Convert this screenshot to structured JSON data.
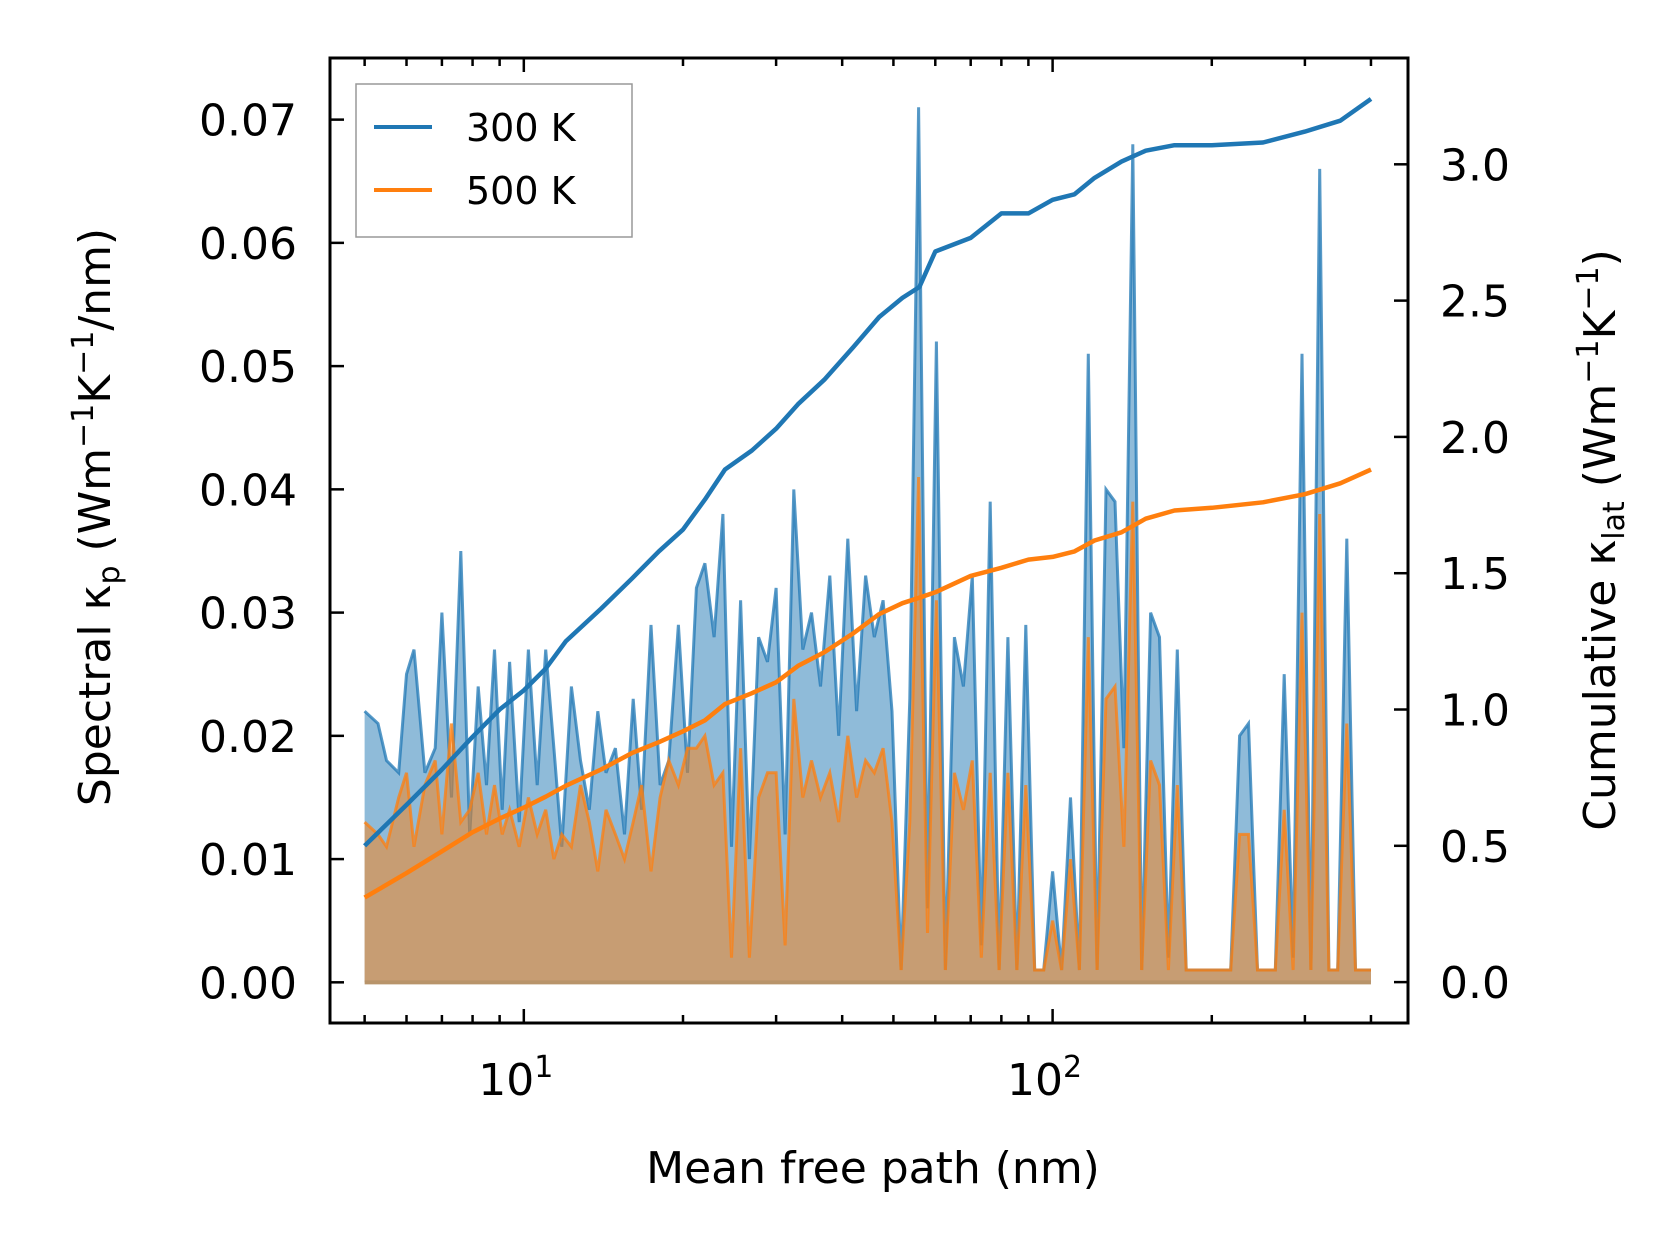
{
  "chart_data": {
    "type": "line",
    "xscale": "log",
    "xlabel": "Mean free path (nm)",
    "ylabel_left": {
      "text": "Spectral κ",
      "sub": "p",
      "unit_open": " (Wm",
      "sup1": "−1",
      "mid": "K",
      "sup2": "−1",
      "tail": "/nm)"
    },
    "ylabel_right": {
      "text": "Cumulative κ",
      "sub": "lat",
      "unit_open": " (Wm",
      "sup1": "−1",
      "mid": "K",
      "sup2": "−1",
      "tail": ")"
    },
    "xlim": [
      4.3,
      470
    ],
    "ylim_left": [
      -0.0033,
      0.075
    ],
    "ylim_right": [
      -0.15,
      3.39
    ],
    "x_ticks": [
      {
        "value": 10,
        "base": "10",
        "exp": "1"
      },
      {
        "value": 100,
        "base": "10",
        "exp": "2"
      }
    ],
    "y_left_ticks": [
      "0.00",
      "0.01",
      "0.02",
      "0.03",
      "0.04",
      "0.05",
      "0.06",
      "0.07"
    ],
    "y_right_ticks": [
      "0.0",
      "0.5",
      "1.0",
      "1.5",
      "2.0",
      "2.5",
      "3.0"
    ],
    "legend": {
      "position": "upper-left",
      "entries": [
        "300 K",
        "500 K"
      ]
    },
    "colors": {
      "300K": "#1f77b4",
      "500K": "#ff7f0e",
      "fill300": "#6fa3cf",
      "fill500": "#c49a6c"
    },
    "spectral": {
      "x": [
        5.0,
        5.3,
        5.5,
        5.8,
        6.0,
        6.2,
        6.5,
        6.8,
        7.0,
        7.3,
        7.6,
        7.9,
        8.2,
        8.5,
        8.8,
        9.1,
        9.4,
        9.8,
        10.2,
        10.6,
        11.0,
        11.4,
        11.8,
        12.3,
        12.8,
        13.3,
        13.8,
        14.3,
        14.9,
        15.5,
        16.1,
        16.7,
        17.4,
        18.1,
        18.8,
        19.6,
        20.4,
        21.2,
        22.0,
        22.9,
        23.8,
        24.7,
        25.7,
        26.7,
        27.8,
        28.9,
        30.0,
        31.2,
        32.4,
        33.7,
        35.0,
        36.4,
        37.9,
        39.4,
        41.0,
        42.6,
        44.3,
        46.0,
        47.8,
        49.7,
        51.7,
        53.7,
        55.8,
        58.0,
        60.3,
        62.7,
        65.2,
        67.8,
        70.5,
        73.3,
        76.2,
        79.2,
        82.3,
        85.6,
        89.0,
        92.5,
        96.2,
        100.0,
        104.0,
        108.1,
        112.4,
        116.8,
        121.4,
        126.2,
        131.2,
        136.4,
        141.8,
        147.4,
        153.2,
        159.3,
        165.6,
        172.1,
        178.9,
        186.0,
        193.3,
        201.0,
        209.0,
        217.2,
        225.8,
        234.7,
        244.0,
        253.7,
        263.7,
        274.1,
        285.0,
        296.3,
        308.0,
        320.0,
        333.0,
        346.0,
        360.0,
        374.0,
        389.0,
        400.0
      ],
      "k300": [
        0.022,
        0.021,
        0.018,
        0.017,
        0.025,
        0.027,
        0.017,
        0.019,
        0.03,
        0.015,
        0.035,
        0.012,
        0.024,
        0.016,
        0.027,
        0.014,
        0.026,
        0.013,
        0.027,
        0.016,
        0.027,
        0.019,
        0.011,
        0.024,
        0.018,
        0.014,
        0.022,
        0.017,
        0.019,
        0.012,
        0.023,
        0.014,
        0.029,
        0.016,
        0.018,
        0.029,
        0.017,
        0.032,
        0.034,
        0.028,
        0.038,
        0.011,
        0.031,
        0.01,
        0.028,
        0.026,
        0.032,
        0.012,
        0.04,
        0.027,
        0.03,
        0.024,
        0.033,
        0.02,
        0.036,
        0.022,
        0.033,
        0.028,
        0.031,
        0.022,
        0.001,
        0.023,
        0.071,
        0.006,
        0.052,
        0.001,
        0.028,
        0.024,
        0.033,
        0.003,
        0.039,
        0.001,
        0.028,
        0.001,
        0.029,
        0.001,
        0.001,
        0.009,
        0.001,
        0.015,
        0.001,
        0.051,
        0.001,
        0.04,
        0.039,
        0.019,
        0.068,
        0.001,
        0.03,
        0.028,
        0.002,
        0.027,
        0.001,
        0.001,
        0.001,
        0.001,
        0.001,
        0.001,
        0.02,
        0.021,
        0.001,
        0.001,
        0.001,
        0.025,
        0.002,
        0.051,
        0.001,
        0.066,
        0.001,
        0.001,
        0.036,
        0.001,
        0.001,
        0.001
      ],
      "k500": [
        0.013,
        0.012,
        0.011,
        0.015,
        0.017,
        0.011,
        0.016,
        0.018,
        0.012,
        0.021,
        0.013,
        0.014,
        0.017,
        0.012,
        0.016,
        0.012,
        0.014,
        0.011,
        0.015,
        0.012,
        0.014,
        0.01,
        0.012,
        0.011,
        0.016,
        0.013,
        0.009,
        0.014,
        0.012,
        0.01,
        0.013,
        0.016,
        0.009,
        0.015,
        0.018,
        0.016,
        0.019,
        0.019,
        0.02,
        0.016,
        0.017,
        0.002,
        0.019,
        0.002,
        0.015,
        0.017,
        0.017,
        0.003,
        0.023,
        0.015,
        0.018,
        0.015,
        0.017,
        0.013,
        0.02,
        0.015,
        0.018,
        0.017,
        0.019,
        0.013,
        0.001,
        0.013,
        0.041,
        0.004,
        0.031,
        0.001,
        0.017,
        0.014,
        0.018,
        0.002,
        0.017,
        0.001,
        0.017,
        0.001,
        0.016,
        0.001,
        0.001,
        0.005,
        0.001,
        0.01,
        0.001,
        0.028,
        0.001,
        0.023,
        0.024,
        0.011,
        0.039,
        0.001,
        0.018,
        0.016,
        0.001,
        0.016,
        0.001,
        0.001,
        0.001,
        0.001,
        0.001,
        0.001,
        0.012,
        0.012,
        0.001,
        0.001,
        0.001,
        0.014,
        0.001,
        0.03,
        0.001,
        0.038,
        0.001,
        0.001,
        0.021,
        0.001,
        0.001,
        0.001
      ]
    },
    "cumulative": {
      "x300": [
        5.0,
        6.0,
        7.0,
        8.0,
        9.0,
        10.0,
        11.0,
        12.0,
        14.0,
        16.0,
        18.0,
        20.0,
        22.0,
        24.0,
        27.0,
        30.0,
        33.0,
        37.0,
        42.0,
        47.0,
        52.0,
        56.0,
        60.0,
        70.0,
        80.0,
        90.0,
        100.0,
        110.0,
        120.0,
        135.0,
        150.0,
        170.0,
        200.0,
        250.0,
        300.0,
        350.0,
        400.0
      ],
      "y300": [
        0.5,
        0.65,
        0.78,
        0.9,
        1.0,
        1.07,
        1.15,
        1.25,
        1.37,
        1.48,
        1.58,
        1.66,
        1.77,
        1.88,
        1.95,
        2.03,
        2.12,
        2.21,
        2.33,
        2.44,
        2.51,
        2.55,
        2.68,
        2.73,
        2.82,
        2.82,
        2.87,
        2.89,
        2.95,
        3.01,
        3.05,
        3.07,
        3.07,
        3.08,
        3.12,
        3.16,
        3.24
      ],
      "x500": [
        5.0,
        6.0,
        7.0,
        8.0,
        9.0,
        10.0,
        11.0,
        12.0,
        14.0,
        16.0,
        18.0,
        20.0,
        22.0,
        24.0,
        27.0,
        30.0,
        33.0,
        37.0,
        42.0,
        47.0,
        52.0,
        56.0,
        60.0,
        70.0,
        80.0,
        90.0,
        100.0,
        110.0,
        120.0,
        135.0,
        150.0,
        170.0,
        200.0,
        250.0,
        300.0,
        350.0,
        400.0
      ],
      "y500": [
        0.31,
        0.4,
        0.48,
        0.55,
        0.6,
        0.64,
        0.68,
        0.72,
        0.78,
        0.84,
        0.88,
        0.92,
        0.96,
        1.02,
        1.06,
        1.1,
        1.16,
        1.21,
        1.28,
        1.35,
        1.39,
        1.41,
        1.43,
        1.49,
        1.52,
        1.55,
        1.56,
        1.58,
        1.62,
        1.65,
        1.7,
        1.73,
        1.74,
        1.76,
        1.79,
        1.83,
        1.88
      ]
    }
  }
}
